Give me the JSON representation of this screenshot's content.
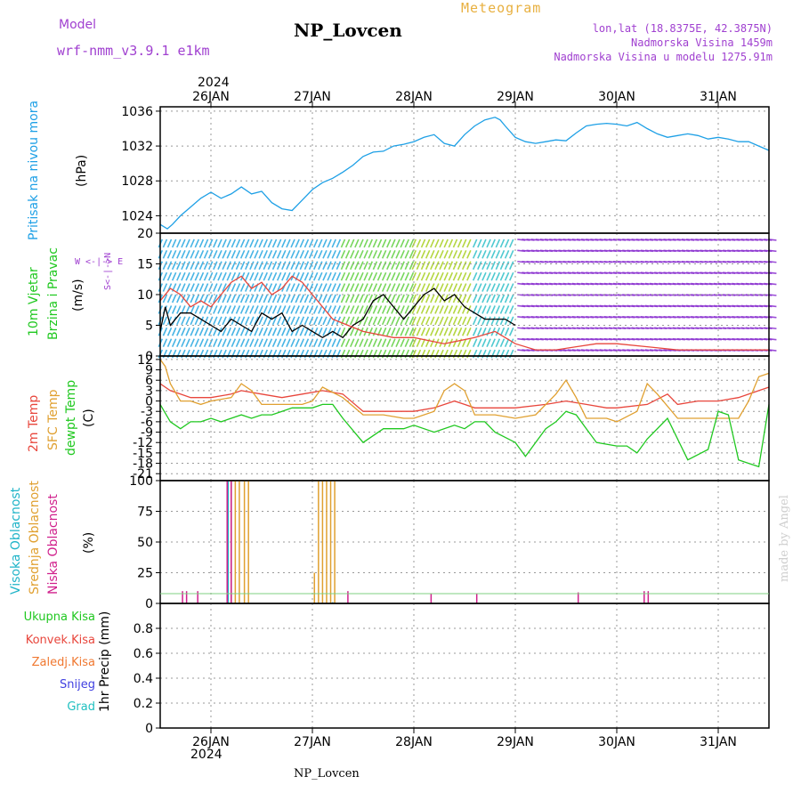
{
  "header": {
    "model_label": "Model",
    "model_value": "wrf-nmm_v3.9.1 e1km",
    "station": "NP_Lovcen",
    "product": "Meteogram",
    "coords": "lon,lat (18.8375E, 42.3875N)",
    "elevation": "Nadmorska Visina 1459m",
    "model_elevation": "Nadmorska Visina u modelu 1275.91m",
    "footer_station": "NP_Lovcen",
    "credit": "made by Angel",
    "year": "2024"
  },
  "colors": {
    "pressure": "#1ea0e6",
    "temp2m": "#e8463c",
    "sfc": "#e0a030",
    "dewpt": "#20c820",
    "cloud_high": "#20b4c8",
    "cloud_mid": "#e0a030",
    "cloud_low": "#d0208c",
    "wind_black": "#000000",
    "wind_gust": "#e8463c",
    "title_purple": "#a040d0",
    "title_orange": "#e8b040",
    "grid": "#999999"
  },
  "chart_data": [
    {
      "type": "line",
      "panel": "pressure",
      "ylabel_side": "Pritisak na nivou mora",
      "ylabel": "(hPa)",
      "ylim": [
        1022,
        1036.5
      ],
      "yticks": [
        1024,
        1028,
        1032,
        1036
      ],
      "grid": true,
      "series": [
        {
          "color": "#1ea0e6",
          "x": [
            25.5,
            25.57,
            25.62,
            25.7,
            25.8,
            25.9,
            26.0,
            26.1,
            26.2,
            26.3,
            26.4,
            26.5,
            26.6,
            26.7,
            26.8,
            26.9,
            27.0,
            27.1,
            27.2,
            27.3,
            27.4,
            27.5,
            27.6,
            27.7,
            27.8,
            27.9,
            28.0,
            28.1,
            28.2,
            28.3,
            28.4,
            28.5,
            28.6,
            28.7,
            28.8,
            28.85,
            28.9,
            29.0,
            29.1,
            29.2,
            29.3,
            29.4,
            29.5,
            29.6,
            29.7,
            29.8,
            29.9,
            30.0,
            30.1,
            30.2,
            30.3,
            30.4,
            30.5,
            30.6,
            30.7,
            30.8,
            30.9,
            31.0,
            31.1,
            31.2,
            31.3,
            31.4,
            31.5
          ],
          "y": [
            1023,
            1022.5,
            1023,
            1024,
            1025,
            1026,
            1026.7,
            1026,
            1026.5,
            1027.3,
            1026.5,
            1026.8,
            1025.5,
            1024.8,
            1024.6,
            1025.8,
            1027,
            1027.8,
            1028.3,
            1029,
            1029.8,
            1030.8,
            1031.3,
            1031.4,
            1032,
            1032.2,
            1032.5,
            1033,
            1033.3,
            1032.3,
            1032,
            1033.3,
            1034.3,
            1035,
            1035.3,
            1035,
            1034.3,
            1033,
            1032.5,
            1032.3,
            1032.5,
            1032.7,
            1032.6,
            1033.5,
            1034.3,
            1034.5,
            1034.6,
            1034.5,
            1034.3,
            1034.7,
            1034,
            1033.4,
            1033,
            1033.2,
            1033.4,
            1033.2,
            1032.8,
            1033,
            1032.8,
            1032.5,
            1032.5,
            1032,
            1031.5
          ]
        }
      ]
    },
    {
      "type": "line",
      "panel": "wind",
      "ylabel_side": [
        "10m Vjetar",
        "Brzina i Pravac"
      ],
      "ylabel": "(m/s)",
      "ylim": [
        0,
        20
      ],
      "yticks": [
        0,
        5,
        10,
        15,
        20
      ],
      "compass_label": "W  <-|->  E",
      "compass_vertical": "S<-|->N",
      "grid": true,
      "series": [
        {
          "color": "#000000",
          "x": [
            25.5,
            25.55,
            25.6,
            25.7,
            25.8,
            25.9,
            26.0,
            26.1,
            26.2,
            26.3,
            26.4,
            26.5,
            26.6,
            26.7,
            26.8,
            26.9,
            27.0,
            27.1,
            27.2,
            27.3,
            27.4,
            27.5,
            27.6,
            27.7,
            27.8,
            27.9,
            28.0,
            28.1,
            28.2,
            28.3,
            28.4,
            28.5,
            28.6,
            28.7,
            28.8,
            28.9,
            29.0
          ],
          "y": [
            4,
            8,
            5,
            7,
            7,
            6,
            5,
            4,
            6,
            5,
            4,
            7,
            6,
            7,
            4,
            5,
            4,
            3,
            4,
            3,
            5,
            6,
            9,
            10,
            8,
            6,
            8,
            10,
            11,
            9,
            10,
            8,
            7,
            6,
            6,
            6,
            5
          ]
        },
        {
          "color": "#e8463c",
          "x": [
            25.5,
            25.6,
            25.7,
            25.8,
            25.9,
            26.0,
            26.1,
            26.2,
            26.3,
            26.4,
            26.5,
            26.6,
            26.7,
            26.8,
            26.9,
            27.0,
            27.2,
            27.5,
            27.8,
            28.0,
            28.3,
            28.6,
            28.8,
            29.0,
            29.2,
            29.4,
            29.6,
            29.8,
            30.0,
            30.3,
            30.6,
            30.9,
            31.2,
            31.5
          ],
          "y": [
            9,
            11,
            10,
            8,
            9,
            8,
            10,
            12,
            13,
            11,
            12,
            10,
            11,
            13,
            12,
            10,
            6,
            4,
            3,
            3,
            2,
            3,
            4,
            2,
            1,
            1,
            1.5,
            2,
            2,
            1.5,
            1,
            1,
            1,
            1
          ]
        }
      ]
    },
    {
      "type": "line",
      "panel": "temperature",
      "ylabel_side": [
        "2m Temp",
        "SFC Temp",
        "dewpt Temp"
      ],
      "ylabel": "(C)",
      "ylim": [
        -23,
        13
      ],
      "yticks": [
        12,
        9,
        6,
        3,
        0,
        -3,
        -6,
        -9,
        -12,
        -15,
        -18,
        -21
      ],
      "grid": true,
      "series": [
        {
          "color": "#e8463c",
          "x": [
            25.5,
            25.6,
            25.7,
            25.8,
            25.9,
            26.0,
            26.2,
            26.3,
            26.5,
            26.7,
            26.9,
            27.1,
            27.3,
            27.5,
            27.7,
            27.9,
            28.0,
            28.2,
            28.4,
            28.5,
            28.6,
            28.8,
            29.0,
            29.3,
            29.5,
            29.7,
            29.9,
            30.0,
            30.3,
            30.5,
            30.6,
            30.8,
            31.0,
            31.2,
            31.4,
            31.5
          ],
          "y": [
            5,
            3,
            2,
            1,
            1,
            1,
            2,
            3,
            2,
            1,
            2,
            3,
            2,
            -3,
            -3,
            -3,
            -3,
            -2,
            0,
            -1,
            -2,
            -2,
            -2,
            -1,
            0,
            -1,
            -2,
            -2,
            -1,
            2,
            -1,
            0,
            0,
            1,
            3,
            4
          ]
        },
        {
          "color": "#e0a030",
          "x": [
            25.5,
            25.55,
            25.6,
            25.7,
            25.8,
            25.9,
            26.0,
            26.2,
            26.3,
            26.4,
            26.5,
            26.6,
            26.8,
            26.9,
            27.0,
            27.1,
            27.3,
            27.5,
            27.7,
            27.9,
            28.0,
            28.2,
            28.3,
            28.4,
            28.5,
            28.6,
            28.8,
            29.0,
            29.2,
            29.4,
            29.5,
            29.6,
            29.7,
            29.9,
            30.0,
            30.2,
            30.3,
            30.4,
            30.6,
            30.9,
            31.2,
            31.3,
            31.4,
            31.5
          ],
          "y": [
            12,
            10,
            5,
            0,
            0,
            -1,
            0,
            1,
            5,
            3,
            -1,
            -1,
            -1,
            -1,
            0,
            4,
            1,
            -4,
            -4,
            -5,
            -5,
            -3,
            3,
            5,
            3,
            -4,
            -4,
            -5,
            -4,
            2,
            6,
            1,
            -5,
            -5,
            -6,
            -3,
            5,
            2,
            -5,
            -5,
            -5,
            0,
            7,
            8
          ]
        },
        {
          "color": "#20c820",
          "x": [
            25.5,
            25.6,
            25.7,
            25.8,
            25.9,
            26.0,
            26.1,
            26.2,
            26.3,
            26.4,
            26.5,
            26.6,
            26.7,
            26.8,
            26.9,
            27.0,
            27.1,
            27.2,
            27.3,
            27.5,
            27.7,
            27.8,
            27.9,
            28.0,
            28.2,
            28.4,
            28.5,
            28.6,
            28.7,
            28.8,
            29.0,
            29.1,
            29.2,
            29.3,
            29.4,
            29.5,
            29.6,
            29.7,
            29.8,
            30.0,
            30.1,
            30.2,
            30.3,
            30.5,
            30.7,
            30.9,
            31.0,
            31.1,
            31.2,
            31.3,
            31.4,
            31.5
          ],
          "y": [
            -1,
            -6,
            -8,
            -6,
            -6,
            -5,
            -6,
            -5,
            -4,
            -5,
            -4,
            -4,
            -3,
            -2,
            -2,
            -2,
            -1,
            -1,
            -5,
            -12,
            -8,
            -8,
            -8,
            -7,
            -9,
            -7,
            -8,
            -6,
            -6,
            -9,
            -12,
            -16,
            -12,
            -8,
            -6,
            -3,
            -4,
            -8,
            -12,
            -13,
            -13,
            -15,
            -11,
            -5,
            -17,
            -14,
            -3,
            -4,
            -17,
            -18,
            -19,
            -1
          ]
        }
      ]
    },
    {
      "type": "bar",
      "panel": "clouds",
      "ylabel_side": [
        "Visoka Oblacnost",
        "Srednja Oblacnost",
        "Niska Oblacnost"
      ],
      "ylabel": "(%)",
      "ylim": [
        0,
        100
      ],
      "yticks": [
        0,
        25,
        50,
        75,
        100
      ],
      "grid": true,
      "series": [
        {
          "color": "#20b4c8",
          "x": [
            26.17,
            26.2,
            27.2
          ],
          "y": [
            100,
            100,
            1
          ]
        },
        {
          "color": "#e0a030",
          "x": [
            26.2,
            26.24,
            26.28,
            26.33,
            26.37,
            27.02,
            27.06,
            27.1,
            27.14,
            27.18,
            27.22
          ],
          "y": [
            100,
            100,
            100,
            100,
            100,
            25,
            100,
            100,
            100,
            100,
            100
          ]
        },
        {
          "color": "#d0208c",
          "x": [
            25.72,
            25.76,
            25.87,
            26.16,
            26.2,
            27.35,
            28.17,
            28.62,
            29.62,
            30.27,
            30.31
          ],
          "y": [
            10,
            10,
            10,
            100,
            100,
            10,
            8,
            8,
            9,
            10,
            10
          ]
        }
      ]
    },
    {
      "type": "bar",
      "panel": "precip",
      "ylabel": "1hr Precip (mm)",
      "ylim": [
        0,
        1
      ],
      "yticks": [
        0,
        0.2,
        0.4,
        0.6,
        0.8
      ],
      "legend": [
        "Ukupna Kisa",
        "Konvek.Kisa",
        "Zaledj.Kisa",
        "Snijeg",
        "Grad"
      ],
      "legend_colors": [
        "#20c820",
        "#e8463c",
        "#f07830",
        "#4040e0",
        "#20c0c0"
      ],
      "grid": true,
      "series": []
    }
  ],
  "time_axis": {
    "xlim": [
      25.5,
      31.5
    ],
    "ticks": [
      26,
      27,
      28,
      29,
      30,
      31
    ],
    "tick_labels": [
      "26JAN",
      "27JAN",
      "28JAN",
      "29JAN",
      "30JAN",
      "31JAN"
    ]
  }
}
